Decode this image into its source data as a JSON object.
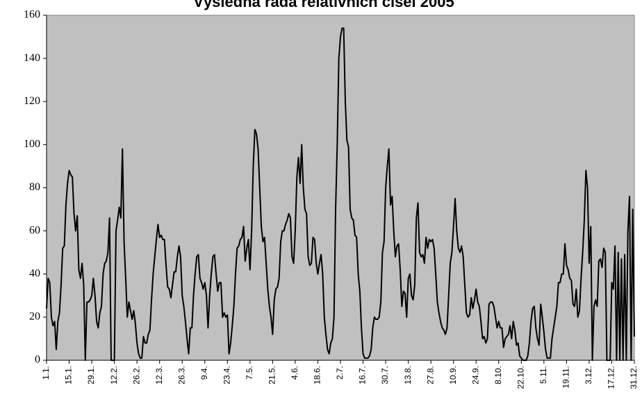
{
  "chart_data": {
    "type": "line",
    "title": "Výsledná řada relativních čísel 2005",
    "categories": [
      "1.1.",
      null,
      null,
      null,
      null,
      null,
      null,
      null,
      null,
      null,
      null,
      null,
      null,
      null,
      "15.1.",
      null,
      null,
      null,
      null,
      null,
      null,
      null,
      null,
      null,
      null,
      null,
      null,
      null,
      "29.1.",
      null,
      null,
      null,
      null,
      null,
      null,
      null,
      null,
      null,
      null,
      null,
      null,
      null,
      "12.2.",
      null,
      null,
      null,
      null,
      null,
      null,
      null,
      null,
      null,
      null,
      null,
      null,
      null,
      "26.2.",
      null,
      null,
      null,
      null,
      null,
      null,
      null,
      null,
      null,
      null,
      null,
      null,
      null,
      "12.3.",
      null,
      null,
      null,
      null,
      null,
      null,
      null,
      null,
      null,
      null,
      null,
      null,
      null,
      "26.3.",
      null,
      null,
      null,
      null,
      null,
      null,
      null,
      null,
      null,
      null,
      null,
      null,
      null,
      "9.4.",
      null,
      null,
      null,
      null,
      null,
      null,
      null,
      null,
      null,
      null,
      null,
      null,
      null,
      "23.4.",
      null,
      null,
      null,
      null,
      null,
      null,
      null,
      null,
      null,
      null,
      null,
      null,
      null,
      "7.5.",
      null,
      null,
      null,
      null,
      null,
      null,
      null,
      null,
      null,
      null,
      null,
      null,
      null,
      "21.5.",
      null,
      null,
      null,
      null,
      null,
      null,
      null,
      null,
      null,
      null,
      null,
      null,
      null,
      "4.6.",
      null,
      null,
      null,
      null,
      null,
      null,
      null,
      null,
      null,
      null,
      null,
      null,
      null,
      "18.6.",
      null,
      null,
      null,
      null,
      null,
      null,
      null,
      null,
      null,
      null,
      null,
      null,
      null,
      "2.7.",
      null,
      null,
      null,
      null,
      null,
      null,
      null,
      null,
      null,
      null,
      null,
      null,
      null,
      "16.7.",
      null,
      null,
      null,
      null,
      null,
      null,
      null,
      null,
      null,
      null,
      null,
      null,
      null,
      "30.7.",
      null,
      null,
      null,
      null,
      null,
      null,
      null,
      null,
      null,
      null,
      null,
      null,
      null,
      "13.8.",
      null,
      null,
      null,
      null,
      null,
      null,
      null,
      null,
      null,
      null,
      null,
      null,
      null,
      "27.8.",
      null,
      null,
      null,
      null,
      null,
      null,
      null,
      null,
      null,
      null,
      null,
      null,
      null,
      "10.9.",
      null,
      null,
      null,
      null,
      null,
      null,
      null,
      null,
      null,
      null,
      null,
      null,
      null,
      "24.9.",
      null,
      null,
      null,
      null,
      null,
      null,
      null,
      null,
      null,
      null,
      null,
      null,
      null,
      "8.10.",
      null,
      null,
      null,
      null,
      null,
      null,
      null,
      null,
      null,
      null,
      null,
      null,
      null,
      "22.10.",
      null,
      null,
      null,
      null,
      null,
      null,
      null,
      null,
      null,
      null,
      null,
      null,
      null,
      "5.11.",
      null,
      null,
      null,
      null,
      null,
      null,
      null,
      null,
      null,
      null,
      null,
      null,
      null,
      "19.11.",
      null,
      null,
      null,
      null,
      null,
      null,
      null,
      null,
      null,
      null,
      null,
      null,
      null,
      "3.12.",
      null,
      null,
      null,
      null,
      null,
      null,
      null,
      null,
      null,
      null,
      null,
      null,
      null,
      "17.12.",
      null,
      null,
      null,
      null,
      null,
      null,
      null,
      null,
      null,
      null,
      null,
      null,
      null,
      "31.12."
    ],
    "values": [
      24,
      38,
      36,
      20,
      16,
      18,
      5,
      18,
      22,
      35,
      52,
      53,
      72,
      82,
      88,
      86,
      85,
      68,
      60,
      67,
      42,
      38,
      45,
      35,
      0,
      27,
      27,
      28,
      30,
      38,
      30,
      18,
      15,
      22,
      25,
      40,
      45,
      46,
      50,
      66,
      0,
      0,
      0,
      60,
      65,
      71,
      66,
      98,
      55,
      38,
      20,
      27,
      23,
      19,
      23,
      17,
      8,
      3,
      1,
      1,
      11,
      8,
      8,
      12,
      14,
      28,
      40,
      48,
      56,
      63,
      57,
      58,
      56,
      56,
      44,
      34,
      33,
      29,
      35,
      41,
      41,
      48,
      53,
      48,
      30,
      25,
      18,
      10,
      3,
      15,
      15,
      30,
      40,
      48,
      49,
      38,
      36,
      33,
      36,
      30,
      15,
      30,
      40,
      48,
      49,
      40,
      32,
      36,
      36,
      20,
      22,
      20,
      21,
      3,
      8,
      16,
      25,
      40,
      52,
      53,
      56,
      57,
      62,
      46,
      52,
      56,
      42,
      60,
      90,
      107,
      105,
      98,
      80,
      62,
      55,
      57,
      45,
      33,
      25,
      20,
      12,
      28,
      33,
      34,
      38,
      55,
      60,
      60,
      63,
      65,
      68,
      66,
      48,
      45,
      60,
      85,
      94,
      82,
      100,
      80,
      70,
      68,
      48,
      44,
      45,
      57,
      56,
      45,
      40,
      45,
      49,
      40,
      20,
      12,
      5,
      3,
      8,
      10,
      20,
      70,
      100,
      140,
      150,
      154,
      154,
      120,
      102,
      99,
      70,
      66,
      65,
      58,
      57,
      40,
      32,
      15,
      3,
      1,
      1,
      1,
      2,
      5,
      15,
      20,
      19,
      19,
      20,
      27,
      50,
      55,
      80,
      90,
      98,
      72,
      76,
      60,
      48,
      53,
      54,
      42,
      25,
      32,
      31,
      20,
      38,
      40,
      30,
      28,
      35,
      66,
      73,
      50,
      48,
      49,
      45,
      57,
      52,
      56,
      55,
      56,
      52,
      40,
      27,
      22,
      18,
      15,
      14,
      12,
      15,
      30,
      45,
      50,
      62,
      75,
      60,
      52,
      50,
      53,
      48,
      35,
      22,
      20,
      21,
      29,
      24,
      28,
      33,
      27,
      25,
      18,
      10,
      11,
      8,
      10,
      26,
      27,
      27,
      25,
      20,
      15,
      18,
      15,
      15,
      6,
      10,
      11,
      12,
      16,
      10,
      18,
      14,
      7,
      8,
      2,
      1,
      0,
      0,
      0,
      2,
      8,
      18,
      24,
      25,
      15,
      10,
      7,
      26,
      20,
      13,
      5,
      1,
      1,
      1,
      10,
      15,
      20,
      25,
      36,
      36,
      40,
      40,
      54,
      44,
      42,
      38,
      37,
      26,
      25,
      33,
      20,
      23,
      38,
      50,
      65,
      88,
      80,
      45,
      62,
      0,
      25,
      28,
      25,
      46,
      47,
      43,
      52,
      50,
      0,
      0,
      0,
      36,
      33,
      53,
      0,
      50,
      0,
      47,
      0,
      49,
      0,
      60,
      76,
      0,
      70,
      11
    ],
    "color": "#000000",
    "ylim": [
      0,
      160
    ],
    "yticks": [
      0,
      20,
      40,
      60,
      80,
      100,
      120,
      140,
      160
    ],
    "plot_background": "#c0c0c0"
  }
}
